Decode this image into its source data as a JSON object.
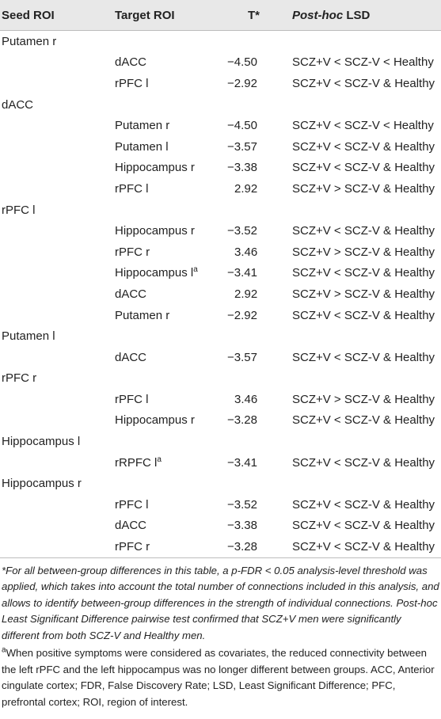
{
  "headers": {
    "seed": "Seed ROI",
    "target": "Target ROI",
    "t": "T*",
    "posthoc_italic": "Post-hoc",
    "posthoc_rest": " LSD"
  },
  "groups": [
    {
      "seed": "Putamen r",
      "rows": [
        {
          "target": "dACC",
          "t": "−4.50",
          "lsd": "SCZ+V < SCZ-V < Healthy"
        },
        {
          "target": "rPFC l",
          "t": "−2.92",
          "lsd": "SCZ+V < SCZ-V & Healthy"
        }
      ]
    },
    {
      "seed": "dACC",
      "rows": [
        {
          "target": "Putamen r",
          "t": "−4.50",
          "lsd": "SCZ+V < SCZ-V < Healthy"
        },
        {
          "target": "Putamen l",
          "t": "−3.57",
          "lsd": "SCZ+V < SCZ-V & Healthy"
        },
        {
          "target": "Hippocampus r",
          "t": "−3.38",
          "lsd": "SCZ+V < SCZ-V & Healthy"
        },
        {
          "target": "rPFC l",
          "t": "2.92",
          "lsd": "SCZ+V > SCZ-V & Healthy"
        }
      ]
    },
    {
      "seed": "rPFC l",
      "rows": [
        {
          "target": "Hippocampus r",
          "t": "−3.52",
          "lsd": "SCZ+V < SCZ-V & Healthy"
        },
        {
          "target": "rPFC r",
          "t": "3.46",
          "lsd": "SCZ+V > SCZ-V & Healthy"
        },
        {
          "target": "Hippocampus l",
          "target_sup": "a",
          "t": "−3.41",
          "lsd": "SCZ+V < SCZ-V & Healthy"
        },
        {
          "target": "dACC",
          "t": "2.92",
          "lsd": "SCZ+V > SCZ-V & Healthy"
        },
        {
          "target": "Putamen r",
          "t": "−2.92",
          "lsd": "SCZ+V < SCZ-V & Healthy"
        }
      ]
    },
    {
      "seed": "Putamen l",
      "rows": [
        {
          "target": "dACC",
          "t": "−3.57",
          "lsd": "SCZ+V < SCZ-V & Healthy"
        }
      ]
    },
    {
      "seed": "rPFC r",
      "rows": [
        {
          "target": "rPFC l",
          "t": "3.46",
          "lsd": "SCZ+V > SCZ-V & Healthy"
        },
        {
          "target": "Hippocampus r",
          "t": "−3.28",
          "lsd": "SCZ+V < SCZ-V & Healthy"
        }
      ]
    },
    {
      "seed": "Hippocampus l",
      "rows": [
        {
          "target": "rRPFC l",
          "target_sup": "a",
          "t": "−3.41",
          "lsd": "SCZ+V < SCZ-V & Healthy"
        }
      ]
    },
    {
      "seed": "Hippocampus r",
      "rows": [
        {
          "target": "rPFC l",
          "t": "−3.52",
          "lsd": "SCZ+V < SCZ-V & Healthy"
        },
        {
          "target": "dACC",
          "t": "−3.38",
          "lsd": "SCZ+V < SCZ-V & Healthy"
        },
        {
          "target": "rPFC r",
          "t": "−3.28",
          "lsd": "SCZ+V < SCZ-V & Healthy"
        }
      ]
    }
  ],
  "footnotes": {
    "star": "*For all between-group differences in this table, a p-FDR < 0.05 analysis-level threshold was applied, which takes into account the total number of connections included in this analysis, and allows to identify between-group differences in the strength of individual connections. Post-hoc Least Significant Difference pairwise test confirmed that SCZ+V men were significantly different from both SCZ-V and Healthy men.",
    "a_marker": "a",
    "a_text": "When positive symptoms were considered as covariates, the reduced connectivity between the left rPFC and the left hippocampus was no longer different between groups. ACC, Anterior cingulate cortex; FDR, False Discovery Rate; LSD, Least Significant Difference; PFC, prefrontal cortex; ROI, region of interest."
  }
}
